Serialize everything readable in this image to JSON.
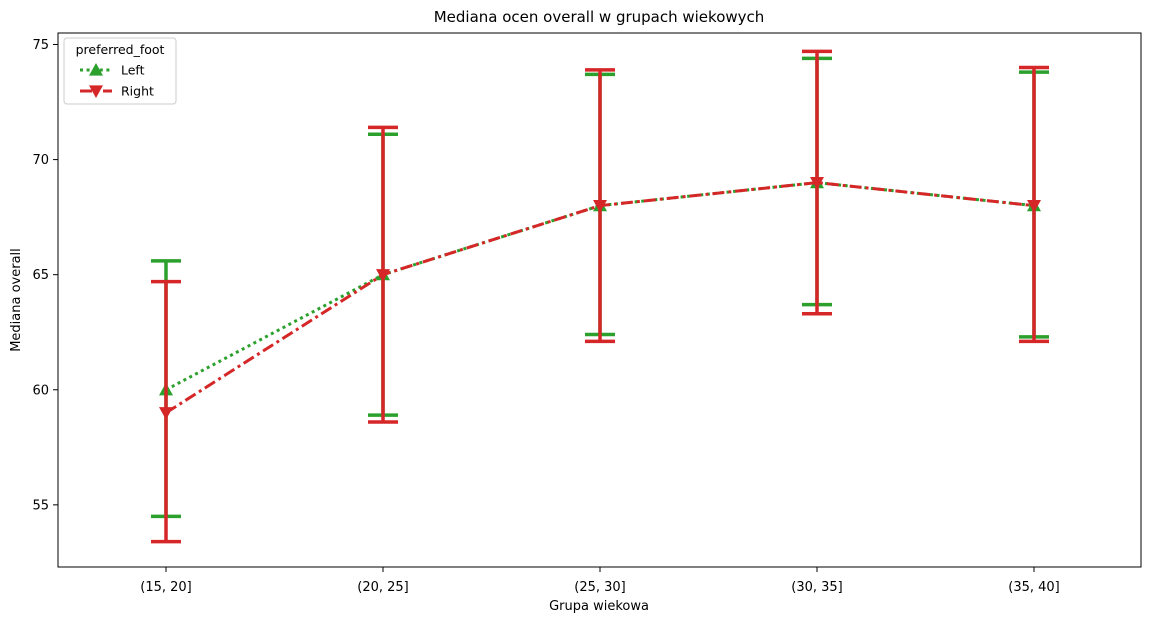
{
  "chart_data": {
    "type": "line",
    "title": "Mediana ocen overall w grupach wiekowych",
    "xlabel": "Grupa wiekowa",
    "ylabel": "Mediana overall",
    "categories": [
      "(15, 20]",
      "(20, 25]",
      "(25, 30]",
      "(30, 35]",
      "(35, 40]"
    ],
    "ylim": [
      52.3,
      75.5
    ],
    "yticks": [
      55,
      60,
      65,
      70,
      75
    ],
    "grid": false,
    "legend": {
      "title": "preferred_foot",
      "placement": "top-left"
    },
    "series": [
      {
        "name": "Left",
        "color": "#2ca02c",
        "marker": "triangle-up",
        "linestyle": "dotted",
        "values": [
          60,
          65,
          68,
          69,
          68
        ],
        "err_low": [
          54.5,
          58.9,
          62.4,
          63.7,
          62.3
        ],
        "err_high": [
          65.6,
          71.1,
          73.7,
          74.4,
          73.8
        ]
      },
      {
        "name": "Right",
        "color": "#d62728",
        "marker": "triangle-down",
        "linestyle": "dashdot",
        "values": [
          59,
          65,
          68,
          69,
          68
        ],
        "err_low": [
          53.4,
          58.6,
          62.1,
          63.3,
          62.1
        ],
        "err_high": [
          64.7,
          71.4,
          73.9,
          74.7,
          74.0
        ]
      }
    ]
  }
}
